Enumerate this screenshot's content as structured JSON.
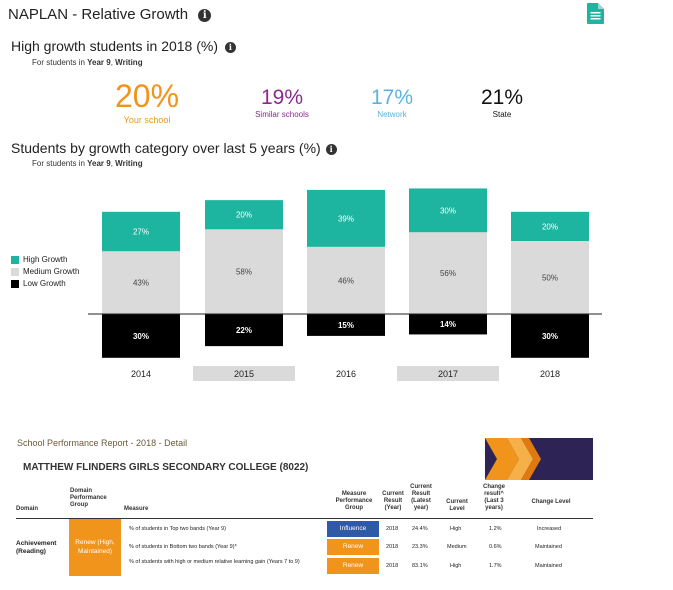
{
  "page": {
    "title": "NAPLAN - Relative Growth",
    "info_glyph": "i"
  },
  "high_growth": {
    "heading": "High growth students in 2018 (%)",
    "for_prefix": "For students in ",
    "year": "Year 9",
    "separator": ", ",
    "domain": "Writing",
    "stats": [
      {
        "value": "20%",
        "label": "Your school",
        "color": "#f0941c"
      },
      {
        "value": "19%",
        "label": "Similar schools",
        "color": "#8a2a8f"
      },
      {
        "value": "17%",
        "label": "Network",
        "color": "#5ab4dc"
      },
      {
        "value": "21%",
        "label": "State",
        "color": "#111111"
      }
    ]
  },
  "growth_category": {
    "heading": "Students by growth category over last 5 years (%)",
    "for_prefix": "For students in ",
    "year": "Year 9",
    "separator": ", ",
    "domain": "Writing"
  },
  "chart_data": {
    "type": "bar",
    "title": "Students by growth category over last 5 years (%)",
    "categories": [
      "2014",
      "2015",
      "2016",
      "2017",
      "2018"
    ],
    "series": [
      {
        "name": "High Growth",
        "color": "#1db5a0",
        "values": [
          27,
          20,
          39,
          30,
          20
        ]
      },
      {
        "name": "Medium Growth",
        "color": "#dadada",
        "values": [
          43,
          58,
          46,
          56,
          50
        ]
      },
      {
        "name": "Low Growth",
        "color": "#000000",
        "values": [
          30,
          22,
          15,
          14,
          30
        ]
      }
    ],
    "labels": {
      "high": [
        "27%",
        "20%",
        "39%",
        "30%",
        "20%"
      ],
      "medium": [
        "43%",
        "58%",
        "46%",
        "56%",
        "50%"
      ],
      "low": [
        "30%",
        "22%",
        "15%",
        "14%",
        "30%"
      ]
    },
    "legend": [
      "High Growth",
      "Medium Growth",
      "Low Growth"
    ],
    "legend_position": "left",
    "stacking": "low growth plotted below baseline"
  },
  "report": {
    "title": "School Performance Report - 2018  - Detail",
    "school": "MATTHEW FLINDERS GIRLS SECONDARY COLLEGE (8022)",
    "headers": {
      "domain": "Domain",
      "dpg": "Domain Performance Group",
      "measure": "Measure",
      "mpg": "Measure Performance Group",
      "current_result_year": "Current Result (Year)",
      "current_result_latest": "Current Result (Latest year)",
      "current_level": "Current Level",
      "change_result": "Change result^ (Last 3 years)",
      "change_level": "Change Level"
    },
    "domain_name": "Achievement (Reading)",
    "dpg_value": "Renew (High, Maintained)",
    "rows": [
      {
        "measure": "% of students in Top two bands (Year 9)",
        "mpg": "Influence",
        "mpg_color": "#2e5aa8",
        "year": "2018",
        "latest": "24.4%",
        "level": "High",
        "change": "1.2%",
        "change_level": "Increased"
      },
      {
        "measure": "% of students in Bottom two bands (Year 9)*",
        "mpg": "Renew",
        "mpg_color": "#f0941c",
        "year": "2018",
        "latest": "23.3%",
        "level": "Medium",
        "change": "0.6%",
        "change_level": "Maintained"
      },
      {
        "measure": "% of students with high or medium relative learning gain (Years 7 to 9)",
        "mpg": "Renew",
        "mpg_color": "#f0941c",
        "year": "2018",
        "latest": "83.1%",
        "level": "High",
        "change": "1.7%",
        "change_level": "Maintained"
      }
    ]
  }
}
